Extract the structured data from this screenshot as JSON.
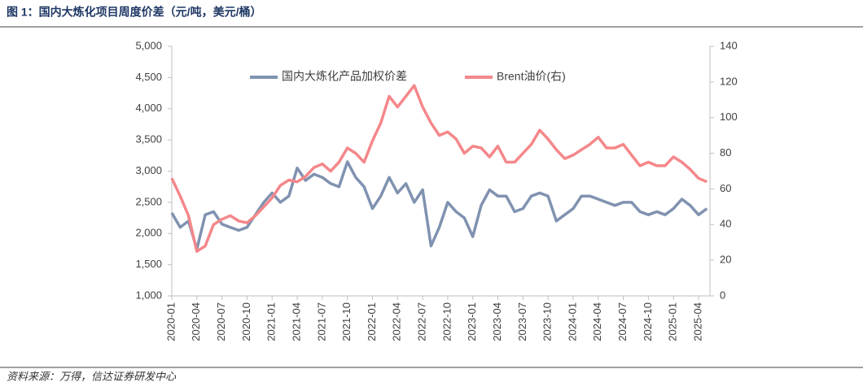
{
  "header": {
    "title": "图 1：国内大炼化项目周度价差（元/吨，美元/桶）"
  },
  "chart_data": {
    "type": "line",
    "categories": [
      "2020-01",
      null,
      null,
      "2020-04",
      null,
      null,
      "2020-07",
      null,
      null,
      "2020-10",
      null,
      null,
      "2021-01",
      null,
      null,
      "2021-04",
      null,
      null,
      "2021-07",
      null,
      null,
      "2021-10",
      null,
      null,
      "2022-01",
      null,
      null,
      "2022-04",
      null,
      null,
      "2022-07",
      null,
      null,
      "2022-10",
      null,
      null,
      "2023-01",
      null,
      null,
      "2023-04",
      null,
      null,
      "2023-07",
      null,
      null,
      "2023-10",
      null,
      null,
      "2024-01",
      null,
      null,
      "2024-04",
      null,
      null,
      "2024-07",
      null,
      null,
      "2024-10",
      null,
      null,
      "2025-01",
      null,
      null,
      "2025-04",
      null
    ],
    "series": [
      {
        "name": "国内大炼化产品加权价差",
        "color": "#8092b0",
        "axis": "y",
        "values": [
          2330,
          2100,
          2200,
          1750,
          2300,
          2350,
          2150,
          2100,
          2050,
          2100,
          2300,
          2500,
          2650,
          2500,
          2600,
          3050,
          2850,
          2950,
          2900,
          2800,
          2750,
          3150,
          2900,
          2750,
          2400,
          2600,
          2900,
          2650,
          2800,
          2500,
          2700,
          1800,
          2100,
          2500,
          2350,
          2250,
          1950,
          2450,
          2700,
          2600,
          2600,
          2350,
          2400,
          2600,
          2650,
          2600,
          2200,
          2300,
          2400,
          2600,
          2600,
          2550,
          2500,
          2450,
          2500,
          2500,
          2350,
          2300,
          2350,
          2300,
          2400,
          2550,
          2450,
          2300,
          2400
        ]
      },
      {
        "name": "Brent油价(右)",
        "color": "#f4878a",
        "axis": "y2",
        "values": [
          66,
          56,
          45,
          25,
          28,
          40,
          43,
          45,
          42,
          41,
          45,
          50,
          55,
          62,
          65,
          64,
          67,
          72,
          74,
          70,
          75,
          83,
          80,
          75,
          87,
          97,
          112,
          106,
          112,
          118,
          106,
          97,
          90,
          92,
          88,
          80,
          84,
          83,
          78,
          84,
          75,
          75,
          80,
          85,
          93,
          88,
          82,
          77,
          79,
          82,
          85,
          89,
          83,
          83,
          85,
          79,
          73,
          75,
          73,
          73,
          78,
          75,
          71,
          66,
          64
        ]
      }
    ],
    "ylim": [
      1000,
      5000
    ],
    "yticks": [
      {
        "value": 1000,
        "label": "1,000"
      },
      {
        "value": 1500,
        "label": "1,500"
      },
      {
        "value": 2000,
        "label": "2,000"
      },
      {
        "value": 2500,
        "label": "2,500"
      },
      {
        "value": 3000,
        "label": "3,000"
      },
      {
        "value": 3500,
        "label": "3,500"
      },
      {
        "value": 4000,
        "label": "4,000"
      },
      {
        "value": 4500,
        "label": "4,500"
      },
      {
        "value": 5000,
        "label": "5,000"
      }
    ],
    "y2lim": [
      0,
      140
    ],
    "y2ticks": [
      0,
      20,
      40,
      60,
      80,
      100,
      120,
      140
    ],
    "legend": "top"
  },
  "footer": {
    "source": "资料来源：万得，信达证券研发中心"
  }
}
